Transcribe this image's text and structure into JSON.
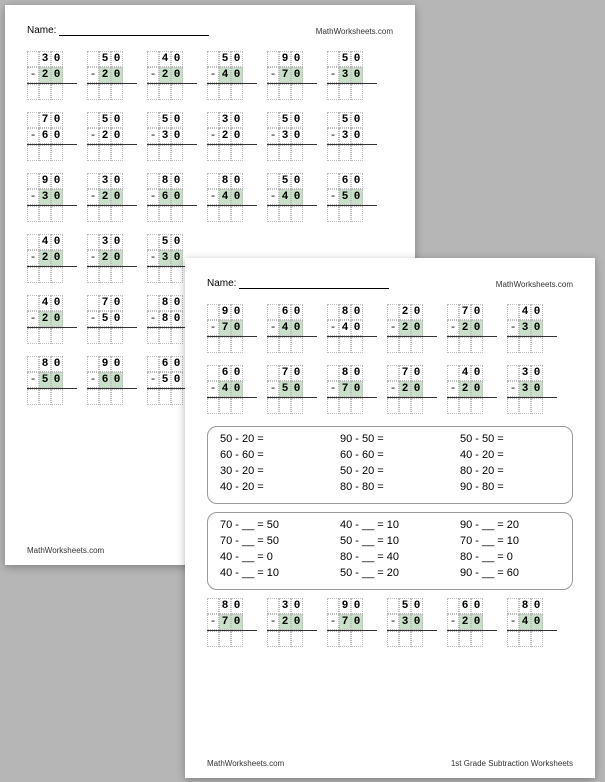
{
  "name_label": "Name:",
  "site": "MathWorksheets.com",
  "footer_left": "MathWorksheets.com",
  "footer_right": "1st Grade Subtraction Worksheets",
  "page1": {
    "rows": [
      [
        {
          "t": "30",
          "b": "20",
          "h": 1
        },
        {
          "t": "50",
          "b": "20",
          "h": 1
        },
        {
          "t": "40",
          "b": "20",
          "h": 1
        },
        {
          "t": "50",
          "b": "40",
          "h": 1
        },
        {
          "t": "90",
          "b": "70",
          "h": 1
        },
        {
          "t": "50",
          "b": "30",
          "h": 1
        }
      ],
      [
        {
          "t": "70",
          "b": "60",
          "h": 0
        },
        {
          "t": "50",
          "b": "20",
          "h": 0
        },
        {
          "t": "50",
          "b": "30",
          "h": 0
        },
        {
          "t": "30",
          "b": "20",
          "h": 0
        },
        {
          "t": "50",
          "b": "30",
          "h": 0
        },
        {
          "t": "50",
          "b": "30",
          "h": 0
        }
      ],
      [
        {
          "t": "90",
          "b": "30",
          "h": 1
        },
        {
          "t": "30",
          "b": "20",
          "h": 1
        },
        {
          "t": "80",
          "b": "60",
          "h": 1
        },
        {
          "t": "80",
          "b": "40",
          "h": 1
        },
        {
          "t": "50",
          "b": "40",
          "h": 1
        },
        {
          "t": "60",
          "b": "50",
          "h": 1
        }
      ],
      [
        {
          "t": "40",
          "b": "20",
          "h": 1
        },
        {
          "t": "30",
          "b": "20",
          "h": 1
        },
        {
          "t": "50",
          "b": "30",
          "h": 1
        }
      ],
      [
        {
          "t": "40",
          "b": "20",
          "h": 1
        },
        {
          "t": "70",
          "b": "50",
          "h": 0
        },
        {
          "t": "80",
          "b": "80",
          "h": 0
        }
      ],
      [
        {
          "t": "80",
          "b": "50",
          "h": 1
        },
        {
          "t": "90",
          "b": "60",
          "h": 1
        },
        {
          "t": "60",
          "b": "50",
          "h": 0
        }
      ]
    ]
  },
  "page2": {
    "rows": [
      [
        {
          "t": "90",
          "b": "70",
          "h": 1
        },
        {
          "t": "60",
          "b": "40",
          "h": 1
        },
        {
          "t": "80",
          "b": "40",
          "h": 0
        },
        {
          "t": "20",
          "b": "20",
          "h": 1
        },
        {
          "t": "70",
          "b": "20",
          "h": 1
        },
        {
          "t": "40",
          "b": "30",
          "h": 1
        }
      ],
      [
        {
          "t": "60",
          "b": "40",
          "h": 1
        },
        {
          "t": "70",
          "b": "50",
          "h": 1
        },
        {
          "t": "80",
          "b": "70",
          "h": 1
        },
        {
          "t": "70",
          "b": "20",
          "h": 1
        },
        {
          "t": "40",
          "b": "20",
          "h": 1
        },
        {
          "t": "30",
          "b": "30",
          "h": 1
        }
      ]
    ],
    "panel1": [
      [
        "50 - 20 =",
        "90 - 50 =",
        "50 - 50 ="
      ],
      [
        "60 - 60 =",
        "60 - 60 =",
        "40 - 20 ="
      ],
      [
        "30 - 20 =",
        "50 - 20 =",
        "80 - 20 ="
      ],
      [
        "40 - 20 =",
        "80 - 80 =",
        "90 - 80 ="
      ]
    ],
    "panel2": [
      [
        "70 - __ = 50",
        "40 - __ = 10",
        "90 - __ = 20"
      ],
      [
        "70 - __ = 50",
        "50 - __ = 10",
        "70 - __ = 10"
      ],
      [
        "40 - __ = 0",
        "80 - __ = 40",
        "80 - __ = 0"
      ],
      [
        "40 - __ = 10",
        "50 - __ = 20",
        "90 - __ = 60"
      ]
    ],
    "rows2": [
      [
        {
          "t": "80",
          "b": "70",
          "h": 1
        },
        {
          "t": "30",
          "b": "20",
          "h": 1
        },
        {
          "t": "90",
          "b": "70",
          "h": 1
        },
        {
          "t": "50",
          "b": "30",
          "h": 1
        },
        {
          "t": "60",
          "b": "20",
          "h": 1
        },
        {
          "t": "80",
          "b": "40",
          "h": 1
        }
      ]
    ]
  }
}
